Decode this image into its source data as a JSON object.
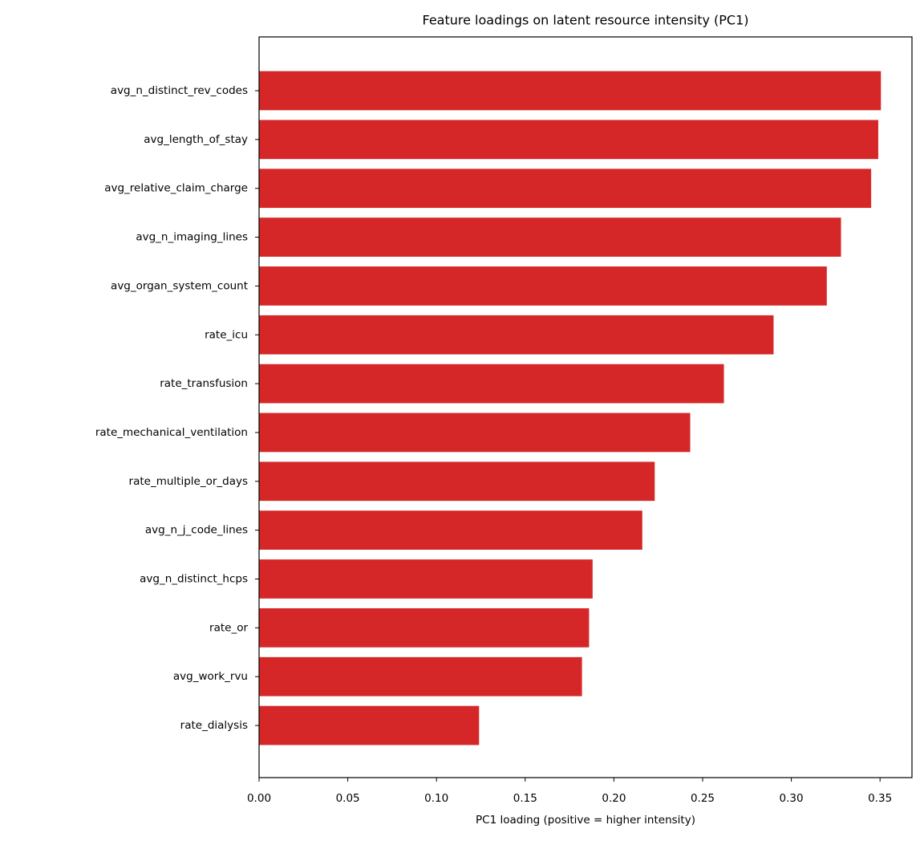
{
  "chart_data": {
    "type": "barh",
    "title": "Feature loadings on latent resource intensity (PC1)",
    "x_label": "PC1 loading (positive = higher intensity)",
    "color": "#d62728",
    "categories": [
      "avg_n_distinct_rev_codes",
      "avg_length_of_stay",
      "avg_relative_claim_charge",
      "avg_n_imaging_lines",
      "avg_organ_system_count",
      "rate_icu",
      "rate_transfusion",
      "rate_mechanical_ventilation",
      "rate_multiple_or_days",
      "avg_n_j_code_lines",
      "avg_n_distinct_hcps",
      "rate_or",
      "avg_work_rvu",
      "rate_dialysis"
    ],
    "values": [
      0.3505,
      0.349,
      0.345,
      0.328,
      0.32,
      0.29,
      0.262,
      0.243,
      0.223,
      0.216,
      0.188,
      0.186,
      0.182,
      0.124
    ],
    "xlim": [
      0,
      0.368
    ],
    "xticks": [
      {
        "value": 0,
        "label": "0.00"
      },
      {
        "value": 0.05,
        "label": "0.05"
      },
      {
        "value": 0.1,
        "label": "0.10"
      },
      {
        "value": 0.15,
        "label": "0.15"
      },
      {
        "value": 0.2,
        "label": "0.20"
      },
      {
        "value": 0.25,
        "label": "0.25"
      },
      {
        "value": 0.3,
        "label": "0.30"
      },
      {
        "value": 0.35,
        "label": "0.35"
      }
    ],
    "grid": false
  }
}
